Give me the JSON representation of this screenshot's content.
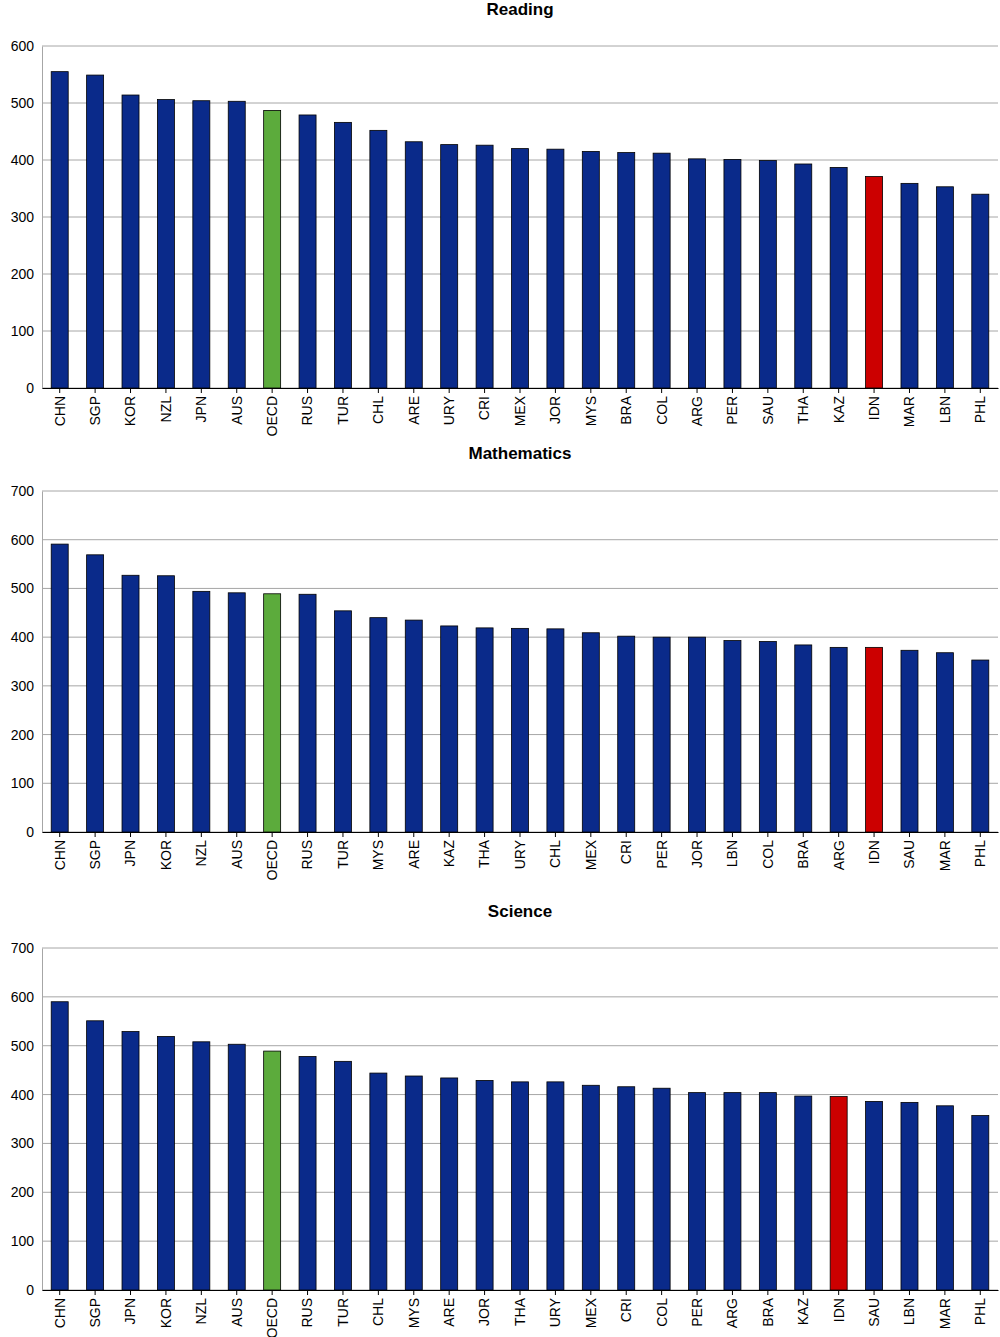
{
  "chart_data": [
    {
      "type": "bar",
      "title": "Reading",
      "categories": [
        "CHN",
        "SGP",
        "KOR",
        "NZL",
        "JPN",
        "AUS",
        "OECD",
        "RUS",
        "TUR",
        "CHL",
        "ARE",
        "URY",
        "CRI",
        "MEX",
        "JOR",
        "MYS",
        "BRA",
        "COL",
        "ARG",
        "PER",
        "SAU",
        "THA",
        "KAZ",
        "IDN",
        "MAR",
        "LBN",
        "PHL"
      ],
      "values": [
        555,
        549,
        514,
        506,
        504,
        503,
        487,
        479,
        466,
        452,
        432,
        427,
        426,
        420,
        419,
        415,
        413,
        412,
        402,
        401,
        399,
        393,
        387,
        371,
        359,
        353,
        340
      ],
      "colors": [
        "#0a2a8a",
        "#0a2a8a",
        "#0a2a8a",
        "#0a2a8a",
        "#0a2a8a",
        "#0a2a8a",
        "#5cab3c",
        "#0a2a8a",
        "#0a2a8a",
        "#0a2a8a",
        "#0a2a8a",
        "#0a2a8a",
        "#0a2a8a",
        "#0a2a8a",
        "#0a2a8a",
        "#0a2a8a",
        "#0a2a8a",
        "#0a2a8a",
        "#0a2a8a",
        "#0a2a8a",
        "#0a2a8a",
        "#0a2a8a",
        "#0a2a8a",
        "#cc0000",
        "#0a2a8a",
        "#0a2a8a",
        "#0a2a8a"
      ],
      "ylim": [
        0,
        600
      ],
      "yticks": [
        0,
        100,
        200,
        300,
        400,
        500,
        600
      ],
      "grid": true
    },
    {
      "type": "bar",
      "title": "Mathematics",
      "categories": [
        "CHN",
        "SGP",
        "JPN",
        "KOR",
        "NZL",
        "AUS",
        "OECD",
        "RUS",
        "TUR",
        "MYS",
        "ARE",
        "KAZ",
        "THA",
        "URY",
        "CHL",
        "MEX",
        "CRI",
        "PER",
        "JOR",
        "LBN",
        "COL",
        "BRA",
        "ARG",
        "IDN",
        "SAU",
        "MAR",
        "PHL"
      ],
      "values": [
        591,
        569,
        527,
        526,
        494,
        491,
        489,
        488,
        454,
        440,
        435,
        423,
        419,
        418,
        417,
        409,
        402,
        400,
        400,
        393,
        391,
        384,
        379,
        379,
        373,
        368,
        353
      ],
      "colors": [
        "#0a2a8a",
        "#0a2a8a",
        "#0a2a8a",
        "#0a2a8a",
        "#0a2a8a",
        "#0a2a8a",
        "#5cab3c",
        "#0a2a8a",
        "#0a2a8a",
        "#0a2a8a",
        "#0a2a8a",
        "#0a2a8a",
        "#0a2a8a",
        "#0a2a8a",
        "#0a2a8a",
        "#0a2a8a",
        "#0a2a8a",
        "#0a2a8a",
        "#0a2a8a",
        "#0a2a8a",
        "#0a2a8a",
        "#0a2a8a",
        "#0a2a8a",
        "#cc0000",
        "#0a2a8a",
        "#0a2a8a",
        "#0a2a8a"
      ],
      "ylim": [
        0,
        700
      ],
      "yticks": [
        0,
        100,
        200,
        300,
        400,
        500,
        600,
        700
      ],
      "grid": true
    },
    {
      "type": "bar",
      "title": "Science",
      "categories": [
        "CHN",
        "SGP",
        "JPN",
        "KOR",
        "NZL",
        "AUS",
        "OECD",
        "RUS",
        "TUR",
        "CHL",
        "MYS",
        "ARE",
        "JOR",
        "THA",
        "URY",
        "MEX",
        "CRI",
        "COL",
        "PER",
        "ARG",
        "BRA",
        "KAZ",
        "IDN",
        "SAU",
        "LBN",
        "MAR",
        "PHL"
      ],
      "values": [
        590,
        551,
        529,
        519,
        508,
        503,
        489,
        478,
        468,
        444,
        438,
        434,
        429,
        426,
        426,
        419,
        416,
        413,
        404,
        404,
        404,
        397,
        396,
        386,
        384,
        377,
        357
      ],
      "colors": [
        "#0a2a8a",
        "#0a2a8a",
        "#0a2a8a",
        "#0a2a8a",
        "#0a2a8a",
        "#0a2a8a",
        "#5cab3c",
        "#0a2a8a",
        "#0a2a8a",
        "#0a2a8a",
        "#0a2a8a",
        "#0a2a8a",
        "#0a2a8a",
        "#0a2a8a",
        "#0a2a8a",
        "#0a2a8a",
        "#0a2a8a",
        "#0a2a8a",
        "#0a2a8a",
        "#0a2a8a",
        "#0a2a8a",
        "#0a2a8a",
        "#cc0000",
        "#0a2a8a",
        "#0a2a8a",
        "#0a2a8a",
        "#0a2a8a"
      ],
      "ylim": [
        0,
        700
      ],
      "yticks": [
        0,
        100,
        200,
        300,
        400,
        500,
        600,
        700
      ],
      "grid": true
    }
  ]
}
